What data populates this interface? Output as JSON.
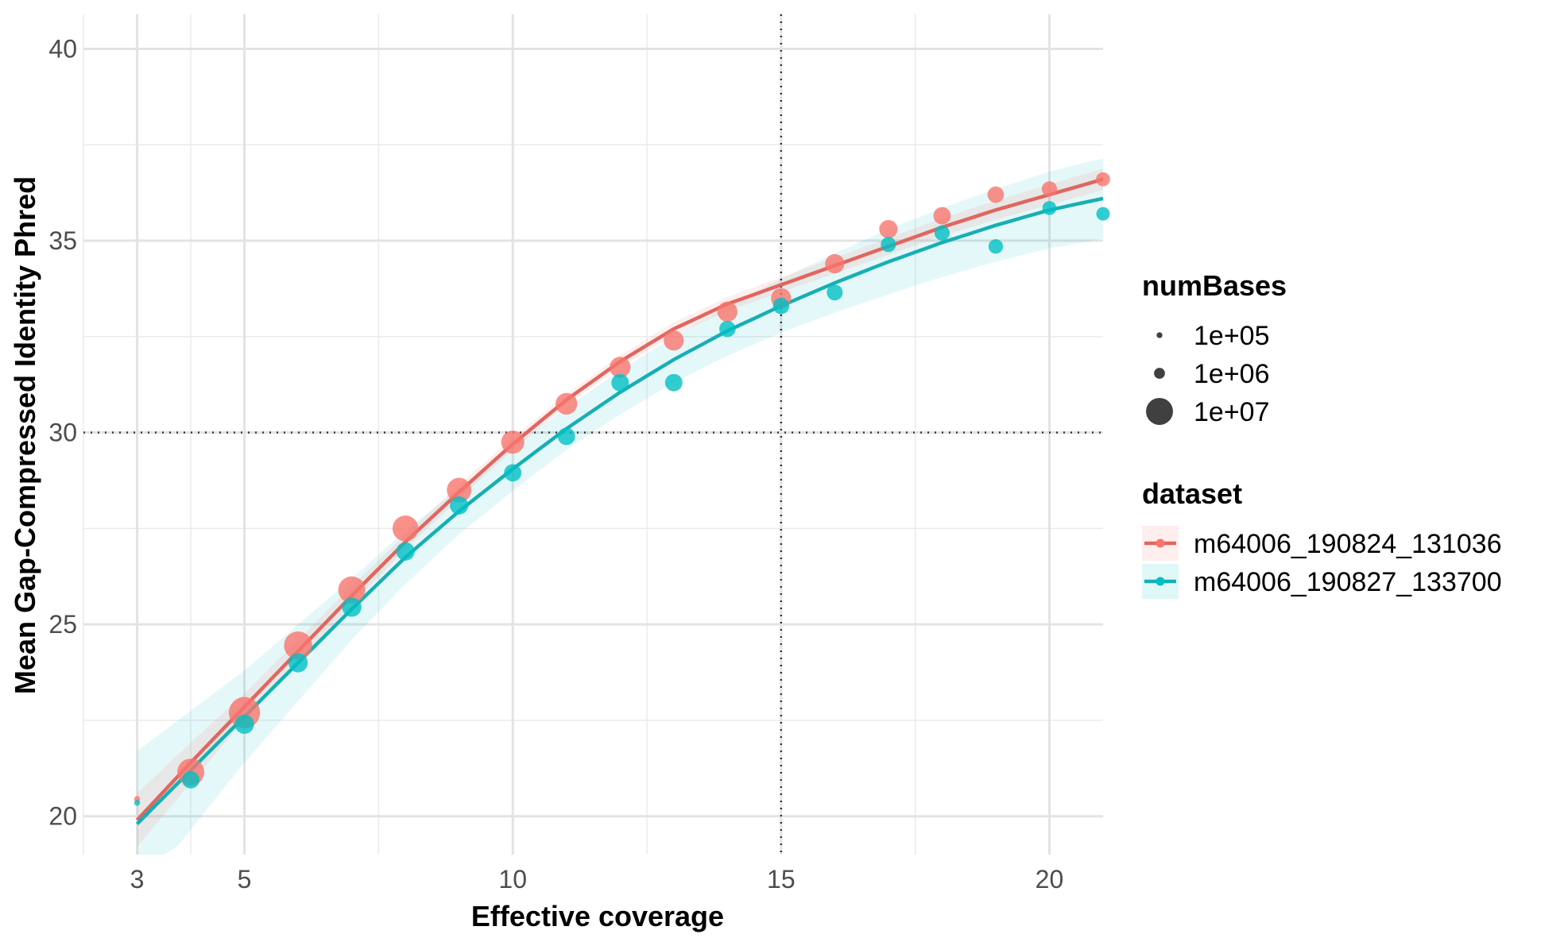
{
  "chart_data": {
    "type": "scatter",
    "title": "",
    "xlabel": "Effective coverage",
    "ylabel": "Mean Gap-Compressed Identity Phred",
    "xlim": [
      2.0,
      21.0
    ],
    "ylim": [
      19.0,
      40.9
    ],
    "x_ticks": [
      3,
      5,
      10,
      15,
      20
    ],
    "x_tick_labels": [
      "3",
      "5",
      "10",
      "15",
      "20"
    ],
    "y_ticks": [
      20,
      25,
      30,
      35,
      40
    ],
    "y_tick_labels": [
      "20",
      "25",
      "30",
      "35",
      "40"
    ],
    "reference_lines": {
      "x": 15,
      "y": 30
    },
    "grid": true,
    "legend_position": "right",
    "size_legend": {
      "title": "numBases",
      "entries": [
        {
          "label": "1e+05",
          "value": 100000
        },
        {
          "label": "1e+06",
          "value": 1000000
        },
        {
          "label": "1e+07",
          "value": 10000000
        }
      ]
    },
    "color_legend": {
      "title": "dataset"
    },
    "series": [
      {
        "name": "m64006_190824_131036",
        "color": "#F8766D",
        "line_color": "#E06660",
        "band_color": "#F8766D",
        "points": [
          {
            "x": 3,
            "y": 20.45,
            "size": 100000
          },
          {
            "x": 4,
            "y": 21.15,
            "size": 10000000
          },
          {
            "x": 5,
            "y": 22.7,
            "size": 14000000
          },
          {
            "x": 6,
            "y": 24.45,
            "size": 11000000
          },
          {
            "x": 7,
            "y": 25.9,
            "size": 10000000
          },
          {
            "x": 8,
            "y": 27.5,
            "size": 9000000
          },
          {
            "x": 9,
            "y": 28.5,
            "size": 8000000
          },
          {
            "x": 10,
            "y": 29.75,
            "size": 7000000
          },
          {
            "x": 11,
            "y": 30.75,
            "size": 6000000
          },
          {
            "x": 12,
            "y": 31.7,
            "size": 5500000
          },
          {
            "x": 13,
            "y": 32.4,
            "size": 5000000
          },
          {
            "x": 14,
            "y": 33.15,
            "size": 5000000
          },
          {
            "x": 15,
            "y": 33.5,
            "size": 5000000
          },
          {
            "x": 16,
            "y": 34.4,
            "size": 4500000
          },
          {
            "x": 17,
            "y": 35.3,
            "size": 4000000
          },
          {
            "x": 18,
            "y": 35.65,
            "size": 3500000
          },
          {
            "x": 19,
            "y": 36.2,
            "size": 3000000
          },
          {
            "x": 20,
            "y": 36.35,
            "size": 2500000
          },
          {
            "x": 21,
            "y": 36.6,
            "size": 2000000
          }
        ],
        "fit": [
          {
            "x": 3,
            "y": 19.9
          },
          {
            "x": 4,
            "y": 21.4
          },
          {
            "x": 5,
            "y": 22.85
          },
          {
            "x": 6,
            "y": 24.3
          },
          {
            "x": 7,
            "y": 25.75
          },
          {
            "x": 8,
            "y": 27.15
          },
          {
            "x": 9,
            "y": 28.45
          },
          {
            "x": 10,
            "y": 29.7
          },
          {
            "x": 11,
            "y": 30.85
          },
          {
            "x": 12,
            "y": 31.85
          },
          {
            "x": 13,
            "y": 32.7
          },
          {
            "x": 14,
            "y": 33.35
          },
          {
            "x": 15,
            "y": 33.85
          },
          {
            "x": 16,
            "y": 34.35
          },
          {
            "x": 17,
            "y": 34.85
          },
          {
            "x": 18,
            "y": 35.35
          },
          {
            "x": 19,
            "y": 35.8
          },
          {
            "x": 20,
            "y": 36.2
          },
          {
            "x": 21,
            "y": 36.6
          }
        ],
        "band_halfwidth": [
          {
            "x": 3,
            "y": 0.7
          },
          {
            "x": 5,
            "y": 0.35
          },
          {
            "x": 8,
            "y": 0.2
          },
          {
            "x": 11,
            "y": 0.15
          },
          {
            "x": 14,
            "y": 0.18
          },
          {
            "x": 17,
            "y": 0.22
          },
          {
            "x": 21,
            "y": 0.28
          }
        ]
      },
      {
        "name": "m64006_190827_133700",
        "color": "#00BFC4",
        "line_color": "#17AFB3",
        "band_color": "#00BFC4",
        "points": [
          {
            "x": 3,
            "y": 20.35,
            "size": 100000
          },
          {
            "x": 4,
            "y": 20.95,
            "size": 3500000
          },
          {
            "x": 5,
            "y": 22.4,
            "size": 4500000
          },
          {
            "x": 6,
            "y": 24.0,
            "size": 4500000
          },
          {
            "x": 7,
            "y": 25.45,
            "size": 4500000
          },
          {
            "x": 8,
            "y": 26.9,
            "size": 4000000
          },
          {
            "x": 9,
            "y": 28.1,
            "size": 4000000
          },
          {
            "x": 10,
            "y": 28.95,
            "size": 3500000
          },
          {
            "x": 11,
            "y": 29.9,
            "size": 3500000
          },
          {
            "x": 12,
            "y": 31.3,
            "size": 3500000
          },
          {
            "x": 13,
            "y": 31.3,
            "size": 3500000
          },
          {
            "x": 14,
            "y": 32.7,
            "size": 3000000
          },
          {
            "x": 15,
            "y": 33.3,
            "size": 3000000
          },
          {
            "x": 16,
            "y": 33.65,
            "size": 2800000
          },
          {
            "x": 17,
            "y": 34.9,
            "size": 2500000
          },
          {
            "x": 18,
            "y": 35.2,
            "size": 2500000
          },
          {
            "x": 19,
            "y": 34.85,
            "size": 2200000
          },
          {
            "x": 20,
            "y": 35.85,
            "size": 2000000
          },
          {
            "x": 21,
            "y": 35.7,
            "size": 1800000
          }
        ],
        "fit": [
          {
            "x": 3,
            "y": 19.8
          },
          {
            "x": 4,
            "y": 21.2
          },
          {
            "x": 5,
            "y": 22.6
          },
          {
            "x": 6,
            "y": 24.0
          },
          {
            "x": 7,
            "y": 25.4
          },
          {
            "x": 8,
            "y": 26.75
          },
          {
            "x": 9,
            "y": 27.95
          },
          {
            "x": 10,
            "y": 29.05
          },
          {
            "x": 11,
            "y": 30.1
          },
          {
            "x": 12,
            "y": 31.05
          },
          {
            "x": 13,
            "y": 31.9
          },
          {
            "x": 14,
            "y": 32.65
          },
          {
            "x": 15,
            "y": 33.3
          },
          {
            "x": 16,
            "y": 33.9
          },
          {
            "x": 17,
            "y": 34.45
          },
          {
            "x": 18,
            "y": 34.95
          },
          {
            "x": 19,
            "y": 35.4
          },
          {
            "x": 20,
            "y": 35.8
          },
          {
            "x": 21,
            "y": 36.1
          }
        ],
        "band_halfwidth": [
          {
            "x": 3,
            "y": 1.9
          },
          {
            "x": 4,
            "y": 1.55
          },
          {
            "x": 5,
            "y": 1.2
          },
          {
            "x": 7,
            "y": 0.8
          },
          {
            "x": 9,
            "y": 0.6
          },
          {
            "x": 11,
            "y": 0.55
          },
          {
            "x": 13,
            "y": 0.6
          },
          {
            "x": 15,
            "y": 0.7
          },
          {
            "x": 17,
            "y": 0.85
          },
          {
            "x": 19,
            "y": 0.95
          },
          {
            "x": 21,
            "y": 1.05
          }
        ]
      }
    ]
  }
}
